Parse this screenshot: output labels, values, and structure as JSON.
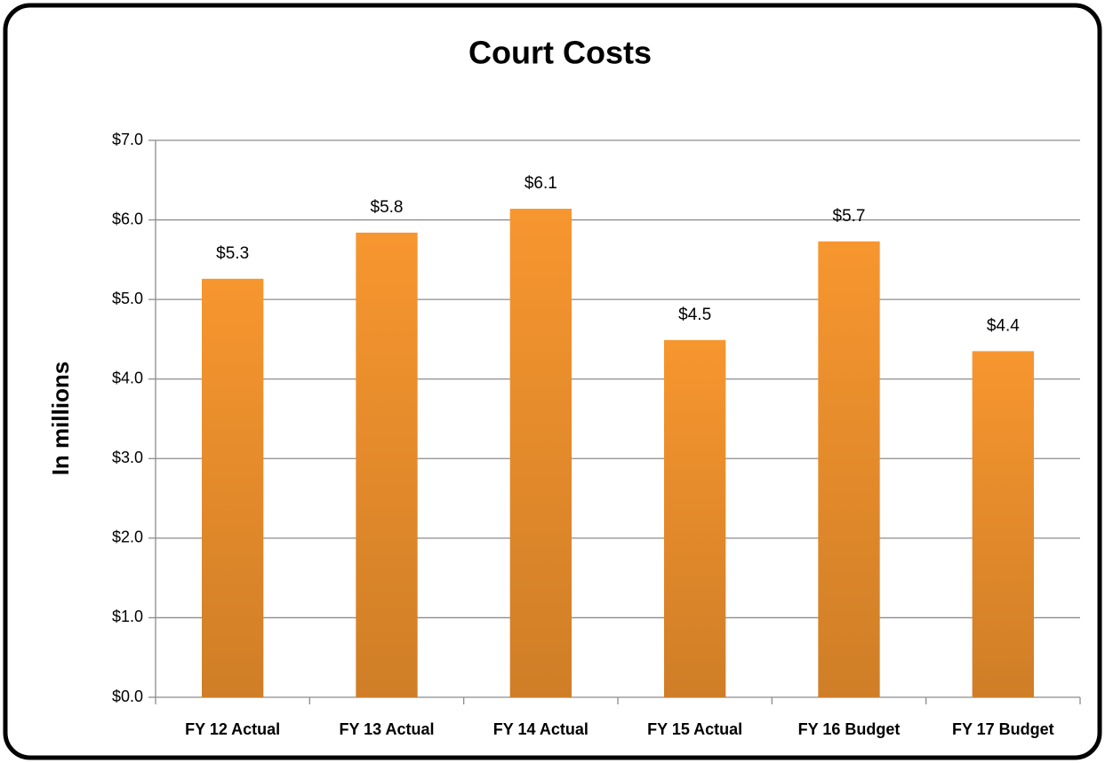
{
  "chart_data": {
    "type": "bar",
    "title": "Court Costs",
    "y_label": "In millions",
    "categories": [
      "FY 12 Actual",
      "FY 13 Actual",
      "FY 14 Actual",
      "FY 15 Actual",
      "FY 16 Budget",
      "FY 17 Budget"
    ],
    "values": [
      5.26,
      5.84,
      6.14,
      4.49,
      5.73,
      4.35
    ],
    "value_labels": [
      "$5.3",
      "$5.8",
      "$6.1",
      "$4.5",
      "$5.7",
      "$4.4"
    ],
    "color": "#f7962f",
    "ylim": [
      0,
      7
    ],
    "yticks": [
      {
        "value": 0,
        "label": "$0.0"
      },
      {
        "value": 1,
        "label": "$1.0"
      },
      {
        "value": 2,
        "label": "$2.0"
      },
      {
        "value": 3,
        "label": "$3.0"
      },
      {
        "value": 4,
        "label": "$4.0"
      },
      {
        "value": 5,
        "label": "$5.0"
      },
      {
        "value": 6,
        "label": "$6.0"
      },
      {
        "value": 7,
        "label": "$7.0"
      }
    ],
    "grid": true
  }
}
